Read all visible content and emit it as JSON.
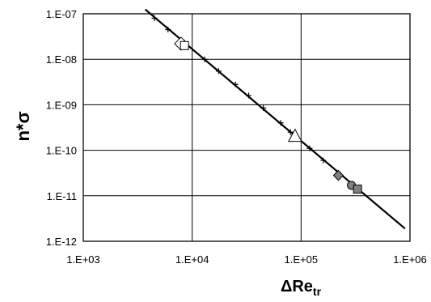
{
  "chart_data": {
    "type": "scatter",
    "title": "",
    "xlabel": "ΔRe",
    "xlabel_sub": "tr",
    "ylabel": "n*σ",
    "x_scale": "log",
    "y_scale": "log",
    "xlim": [
      1000,
      1000000
    ],
    "ylim": [
      1e-12,
      1e-07
    ],
    "x_ticks": [
      {
        "value": 1000,
        "label": "1.E+03"
      },
      {
        "value": 10000,
        "label": "1.E+04"
      },
      {
        "value": 100000,
        "label": "1.E+05"
      },
      {
        "value": 1000000,
        "label": "1.E+06"
      }
    ],
    "y_ticks": [
      {
        "value": 1e-07,
        "label": "1.E-07"
      },
      {
        "value": 1e-08,
        "label": "1.E-08"
      },
      {
        "value": 1e-09,
        "label": "1.E-09"
      },
      {
        "value": 1e-10,
        "label": "1.E-10"
      },
      {
        "value": 1e-11,
        "label": "1.E-11"
      },
      {
        "value": 1e-12,
        "label": "1.E-12"
      }
    ],
    "grid": true,
    "legend": "none",
    "colors": {
      "line": "#000000",
      "grid": "#000000",
      "open_marker": "#ffffff",
      "filled_marker": "#808080"
    },
    "series": [
      {
        "marker": "line",
        "points": [
          {
            "x": 3700,
            "y": 1.25e-07
          },
          {
            "x": 900000,
            "y": 1.9e-12
          }
        ]
      },
      {
        "marker": "plus",
        "points": [
          {
            "x": 4500,
            "y": 8e-08
          },
          {
            "x": 6000,
            "y": 4.5e-08
          },
          {
            "x": 8500,
            "y": 2.3e-08
          },
          {
            "x": 13000,
            "y": 1e-08
          },
          {
            "x": 17500,
            "y": 5.5e-09
          },
          {
            "x": 25000,
            "y": 2.8e-09
          },
          {
            "x": 33000,
            "y": 1.6e-09
          },
          {
            "x": 45000,
            "y": 8.5e-10
          },
          {
            "x": 65000,
            "y": 4e-10
          },
          {
            "x": 80000,
            "y": 2.5e-10
          },
          {
            "x": 120000,
            "y": 1.1e-10
          },
          {
            "x": 160000,
            "y": 6e-11
          },
          {
            "x": 220000,
            "y": 3.2e-11
          }
        ]
      },
      {
        "marker": "open-diamond",
        "points": [
          {
            "x": 7900,
            "y": 2.2e-08
          }
        ]
      },
      {
        "marker": "open-square",
        "points": [
          {
            "x": 8500,
            "y": 2e-08
          }
        ]
      },
      {
        "marker": "open-triangle",
        "points": [
          {
            "x": 88000,
            "y": 2e-10
          }
        ]
      },
      {
        "marker": "filled-diamond",
        "points": [
          {
            "x": 220000,
            "y": 2.8e-11
          }
        ]
      },
      {
        "marker": "filled-circle",
        "points": [
          {
            "x": 290000,
            "y": 1.7e-11
          }
        ]
      },
      {
        "marker": "filled-square",
        "points": [
          {
            "x": 330000,
            "y": 1.4e-11
          }
        ]
      }
    ]
  }
}
